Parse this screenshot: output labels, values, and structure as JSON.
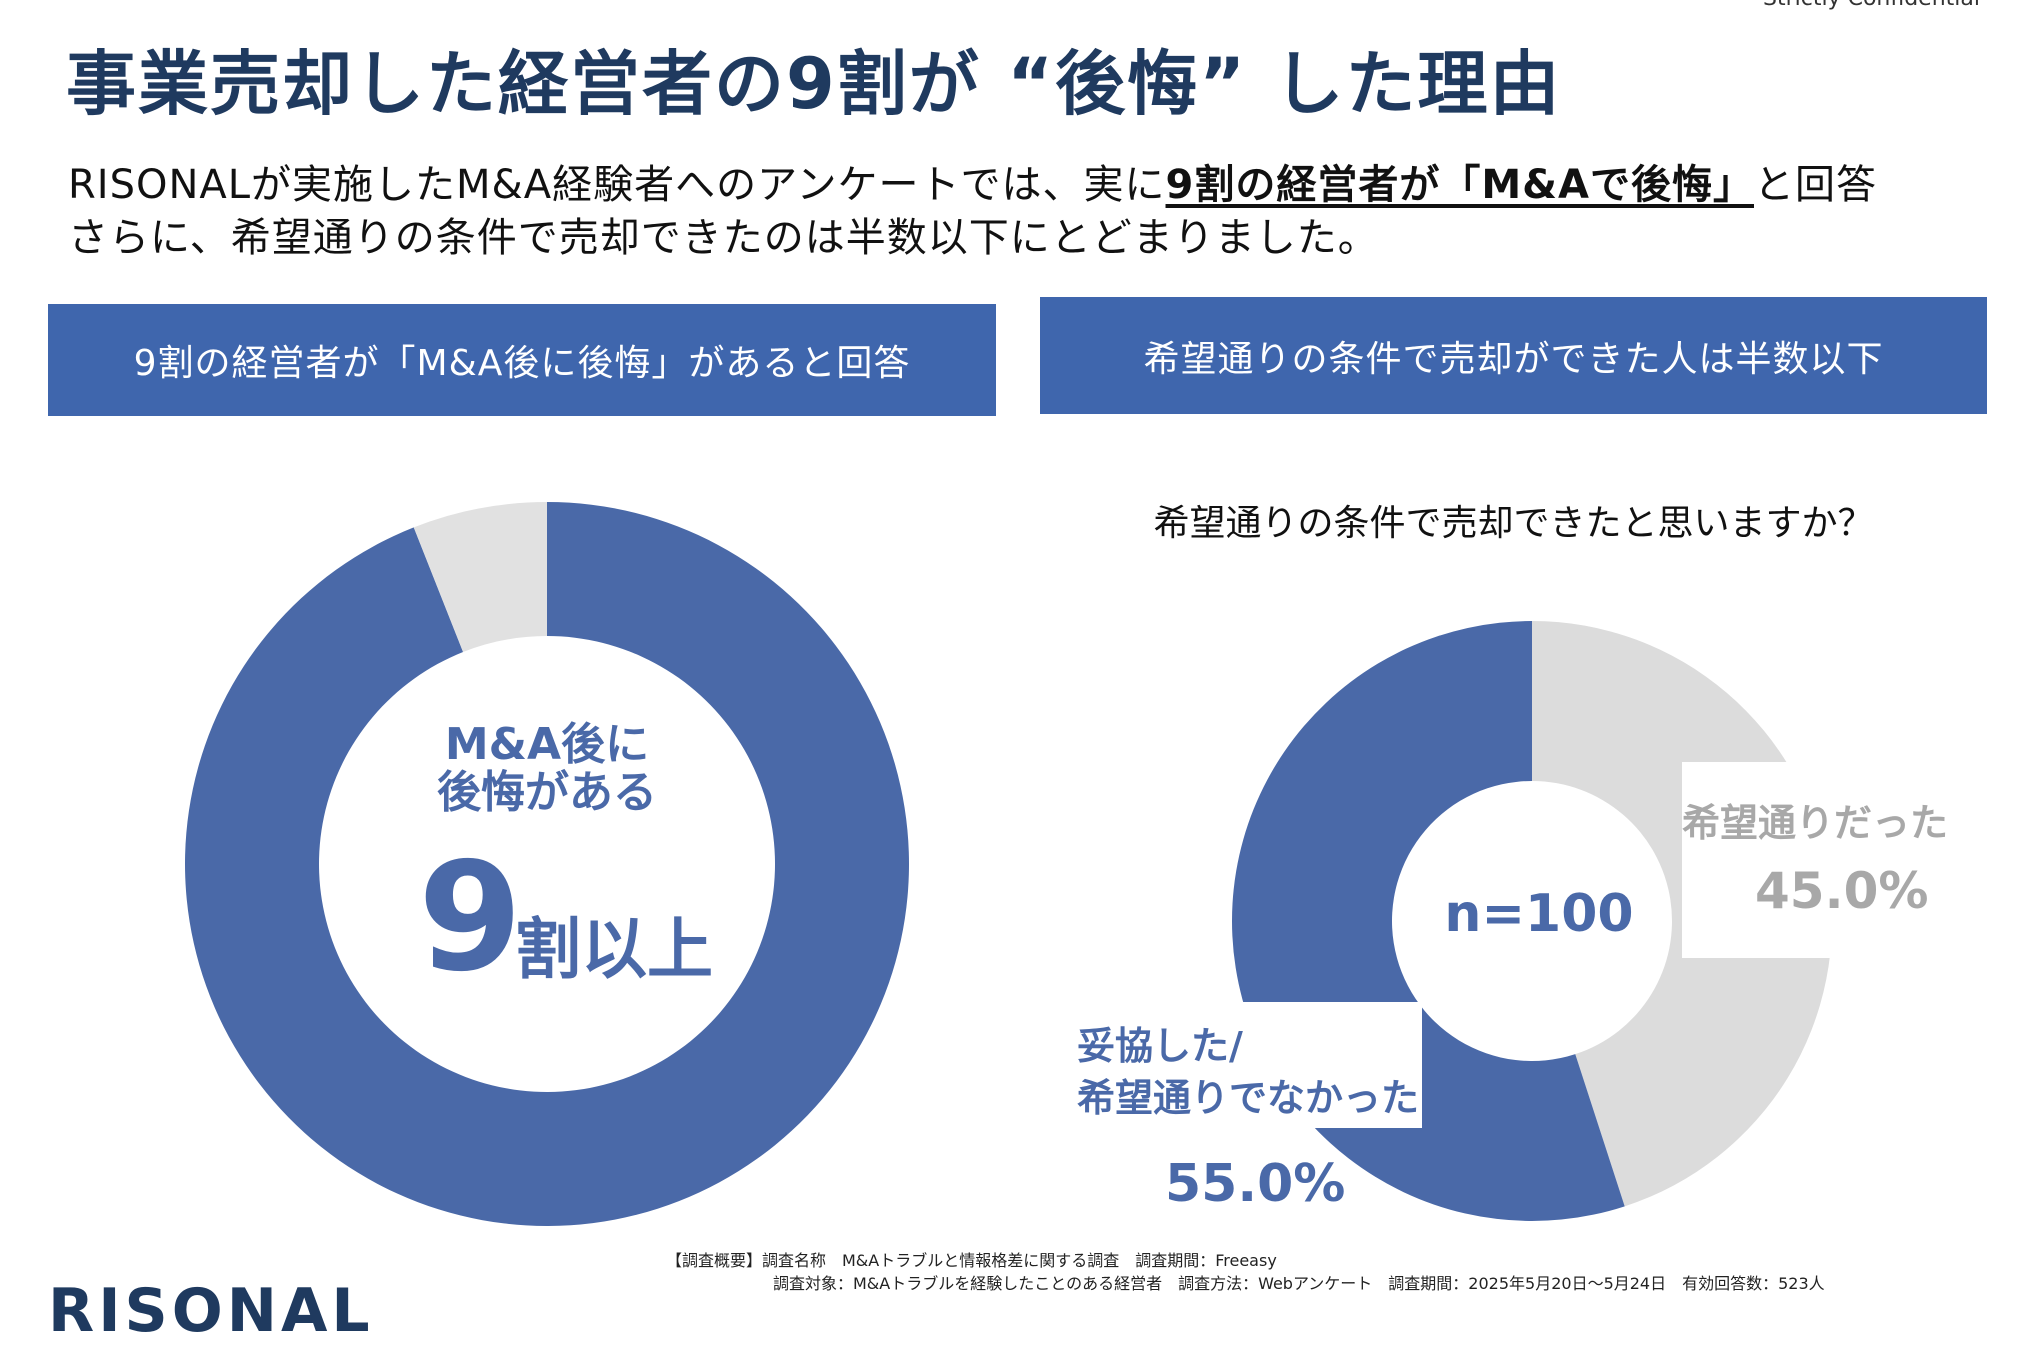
{
  "header": {
    "title": "事業売却した経営者の9割が “後悔” した理由",
    "confidential": "Strictly Confidential"
  },
  "intro": {
    "line1": [
      "RISONALが実施したM&A経験者へのアンケートでは、実に",
      "9割の経営者が「M&Aで後悔」",
      "と回答"
    ],
    "line2": "さらに、希望通りの条件で売却できたのは半数以下にとどまりました。"
  },
  "panels": [
    {
      "heading": "9割の経営者が「M&A後に後悔」があると回答"
    },
    {
      "heading": "希望通りの条件で売却ができた人は半数以下"
    }
  ],
  "chart_data": [
    {
      "type": "donut",
      "categories": [
        null,
        null
      ],
      "values": [
        94,
        6
      ],
      "colors": [
        "#4a69a8",
        "#e1e1e1"
      ],
      "center_lines": [
        "M&A後に",
        "後悔がある"
      ],
      "big_number": "9",
      "big_suffix": "割以上"
    },
    {
      "type": "donut",
      "title": "希望通りの条件で売却できたと思いますか？",
      "categories": [
        "希望通りだった",
        "妥協した/\n希望通りでなかった"
      ],
      "values": [
        45,
        55
      ],
      "value_labels": [
        "45.0%",
        "55.0%"
      ],
      "colors": [
        "#dcdcdc",
        "#4a69a8"
      ],
      "label_colors": [
        "#a8a8a8",
        "#4a69a8"
      ],
      "center_label": "n=100"
    }
  ],
  "footer": {
    "line1": "【調査概要】調査名称　M&Aトラブルと情報格差に関する調査　調査期間：Freeasy",
    "line2": "調査対象：M&Aトラブルを経験したことのある経営者　調査方法：Webアンケート　調査期間：2025年5月20日～5月24日　有効回答数：523人",
    "logo": "RISONAL"
  }
}
